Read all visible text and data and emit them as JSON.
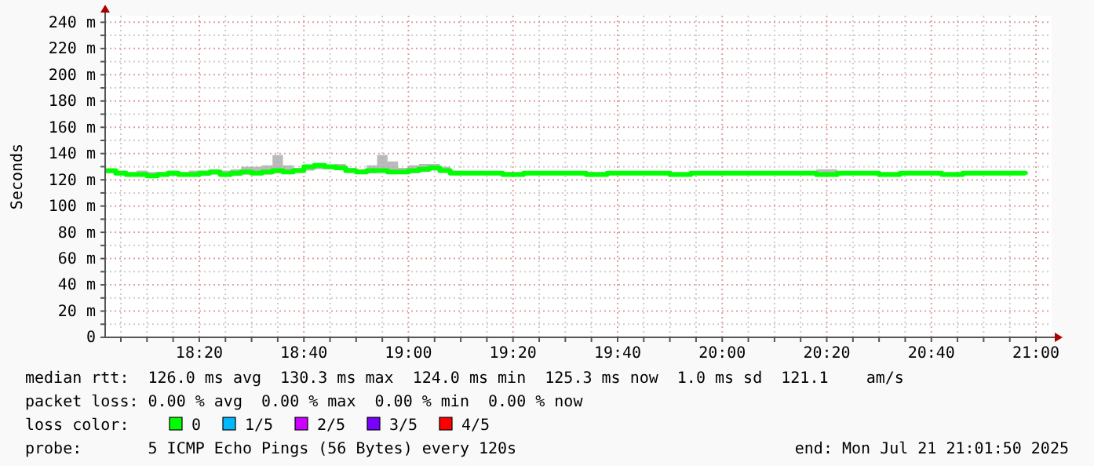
{
  "chart_data": {
    "type": "step",
    "ylabel": "Seconds",
    "legend_title": "loss color:",
    "legend": "bottom",
    "grid": true,
    "line_style": "solid",
    "xlim": [
      18.0333,
      21.05
    ],
    "ylim": [
      0,
      245
    ],
    "xticks": [
      {
        "value": 18.0833,
        "label": null
      },
      {
        "value": 18.1667,
        "label": null
      },
      {
        "value": 18.25,
        "label": null
      },
      {
        "value": 18.3333,
        "label": "18:20"
      },
      {
        "value": 18.4167,
        "label": null
      },
      {
        "value": 18.5,
        "label": null
      },
      {
        "value": 18.5833,
        "label": null
      },
      {
        "value": 18.6667,
        "label": "18:40"
      },
      {
        "value": 18.75,
        "label": null
      },
      {
        "value": 18.8333,
        "label": null
      },
      {
        "value": 18.9167,
        "label": null
      },
      {
        "value": 19,
        "label": "19:00"
      },
      {
        "value": 19.0833,
        "label": null
      },
      {
        "value": 19.1667,
        "label": null
      },
      {
        "value": 19.25,
        "label": null
      },
      {
        "value": 19.3333,
        "label": "19:20"
      },
      {
        "value": 19.4167,
        "label": null
      },
      {
        "value": 19.5,
        "label": null
      },
      {
        "value": 19.5833,
        "label": null
      },
      {
        "value": 19.6667,
        "label": "19:40"
      },
      {
        "value": 19.75,
        "label": null
      },
      {
        "value": 19.8333,
        "label": null
      },
      {
        "value": 19.9167,
        "label": null
      },
      {
        "value": 20,
        "label": "20:00"
      },
      {
        "value": 20.0833,
        "label": null
      },
      {
        "value": 20.1667,
        "label": null
      },
      {
        "value": 20.25,
        "label": null
      },
      {
        "value": 20.3333,
        "label": "20:20"
      },
      {
        "value": 20.4167,
        "label": null
      },
      {
        "value": 20.5,
        "label": null
      },
      {
        "value": 20.5833,
        "label": null
      },
      {
        "value": 20.6667,
        "label": "20:40"
      },
      {
        "value": 20.75,
        "label": null
      },
      {
        "value": 20.8333,
        "label": null
      },
      {
        "value": 20.9167,
        "label": null
      },
      {
        "value": 21,
        "label": "21:00"
      }
    ],
    "yticks": [
      {
        "value": 0,
        "label": "0"
      },
      {
        "value": 10,
        "label": null
      },
      {
        "value": 20,
        "label": "20 m"
      },
      {
        "value": 30,
        "label": null
      },
      {
        "value": 40,
        "label": "40 m"
      },
      {
        "value": 50,
        "label": null
      },
      {
        "value": 60,
        "label": "60 m"
      },
      {
        "value": 70,
        "label": null
      },
      {
        "value": 80,
        "label": "80 m"
      },
      {
        "value": 90,
        "label": null
      },
      {
        "value": 100,
        "label": "100 m"
      },
      {
        "value": 110,
        "label": null
      },
      {
        "value": 120,
        "label": "120 m"
      },
      {
        "value": 130,
        "label": null
      },
      {
        "value": 140,
        "label": "140 m"
      },
      {
        "value": 150,
        "label": null
      },
      {
        "value": 160,
        "label": "160 m"
      },
      {
        "value": 170,
        "label": null
      },
      {
        "value": 180,
        "label": "180 m"
      },
      {
        "value": 190,
        "label": null
      },
      {
        "value": 200,
        "label": "200 m"
      },
      {
        "value": 210,
        "label": null
      },
      {
        "value": 220,
        "label": "220 m"
      },
      {
        "value": 230,
        "label": null
      },
      {
        "value": 240,
        "label": "240 m"
      }
    ],
    "x": [
      18.0333,
      18.0667,
      18.1,
      18.1333,
      18.1667,
      18.2,
      18.2333,
      18.2667,
      18.3,
      18.3333,
      18.3667,
      18.4,
      18.4333,
      18.4667,
      18.5,
      18.5333,
      18.5667,
      18.6,
      18.6333,
      18.6667,
      18.7,
      18.7333,
      18.7667,
      18.8,
      18.8333,
      18.8667,
      18.9,
      18.9333,
      18.9667,
      19,
      19.0333,
      19.0667,
      19.1,
      19.1333,
      19.1667,
      19.2333,
      19.3,
      19.3667,
      19.4333,
      19.5,
      19.5667,
      19.6333,
      19.7,
      19.7667,
      19.8333,
      19.9,
      19.9667,
      20.0333,
      20.1,
      20.1667,
      20.2333,
      20.3,
      20.3667,
      20.4333,
      20.5,
      20.5667,
      20.6333,
      20.7,
      20.7667,
      20.8333,
      20.9,
      20.9667
    ],
    "series": [
      {
        "name": "0",
        "color": "#00ff00",
        "values": [
          127,
          125,
          124,
          124,
          123,
          124,
          125,
          124,
          124,
          125,
          126,
          124,
          125,
          126,
          125,
          126,
          127,
          126,
          127,
          130,
          131,
          130,
          129,
          127,
          126,
          127,
          127,
          126,
          126,
          127,
          128,
          129,
          127,
          125,
          125,
          125,
          124,
          125,
          125,
          125,
          124,
          125,
          125,
          125,
          124,
          125,
          125,
          125,
          125,
          125,
          125,
          124,
          125,
          125,
          124,
          125,
          125,
          124,
          125,
          125,
          125,
          124
        ],
        "lower": [
          125,
          124,
          123,
          123,
          122,
          123,
          123,
          123,
          123,
          123,
          124,
          123,
          123,
          124,
          124,
          124,
          125,
          125,
          126,
          127,
          128,
          128,
          128,
          126,
          125,
          125,
          126,
          125,
          125,
          125,
          126,
          127,
          126,
          125,
          124,
          124,
          123,
          124,
          124,
          124,
          123,
          124,
          124,
          124,
          123,
          124,
          124,
          124,
          124,
          124,
          124,
          123,
          124,
          124,
          123,
          124,
          124,
          123,
          124,
          124,
          124,
          123
        ],
        "upper": [
          128,
          127,
          126,
          127,
          126,
          126,
          127,
          126,
          127,
          127,
          128,
          127,
          128,
          130,
          130,
          131,
          139,
          131,
          129,
          131,
          131,
          131,
          132,
          129,
          128,
          131,
          139,
          134,
          129,
          131,
          132,
          132,
          130,
          127,
          126,
          126,
          126,
          126,
          126,
          126,
          126,
          126,
          126,
          126,
          126,
          126,
          126,
          126,
          126,
          126,
          126,
          128,
          126,
          126,
          126,
          126,
          126,
          126,
          126,
          126,
          126,
          128
        ]
      },
      {
        "name": "1/5",
        "color": "#00b8ff",
        "values": [
          null,
          null,
          null,
          null,
          null,
          null,
          null,
          null,
          null,
          null,
          null,
          null,
          null,
          null,
          null,
          null,
          null,
          null,
          null,
          null,
          null,
          null,
          null,
          null,
          null,
          null,
          null,
          null,
          null,
          null,
          null,
          null,
          null,
          null,
          null,
          null,
          null,
          null,
          null,
          null,
          null,
          null,
          null,
          null,
          null,
          null,
          null,
          null,
          null,
          null,
          null,
          null,
          null,
          null,
          null,
          null,
          null,
          null,
          null,
          null,
          null,
          null
        ]
      },
      {
        "name": "2/5",
        "color": "#cc00ff",
        "values": [
          null,
          null,
          null,
          null,
          null,
          null,
          null,
          null,
          null,
          null,
          null,
          null,
          null,
          null,
          null,
          null,
          null,
          null,
          null,
          null,
          null,
          null,
          null,
          null,
          null,
          null,
          null,
          null,
          null,
          null,
          null,
          null,
          null,
          null,
          null,
          null,
          null,
          null,
          null,
          null,
          null,
          null,
          null,
          null,
          null,
          null,
          null,
          null,
          null,
          null,
          null,
          null,
          null,
          null,
          null,
          null,
          null,
          null,
          null,
          null,
          null,
          null
        ]
      },
      {
        "name": "3/5",
        "color": "#7700ff",
        "values": [
          null,
          null,
          null,
          null,
          null,
          null,
          null,
          null,
          null,
          null,
          null,
          null,
          null,
          null,
          null,
          null,
          null,
          null,
          null,
          null,
          null,
          null,
          null,
          null,
          null,
          null,
          null,
          null,
          null,
          null,
          null,
          null,
          null,
          null,
          null,
          null,
          null,
          null,
          null,
          null,
          null,
          null,
          null,
          null,
          null,
          null,
          null,
          null,
          null,
          null,
          null,
          null,
          null,
          null,
          null,
          null,
          null,
          null,
          null,
          null,
          null,
          null
        ]
      },
      {
        "name": "4/5",
        "color": "#ff0000",
        "values": [
          null,
          null,
          null,
          null,
          null,
          null,
          null,
          null,
          null,
          null,
          null,
          null,
          null,
          null,
          null,
          null,
          null,
          null,
          null,
          null,
          null,
          null,
          null,
          null,
          null,
          null,
          null,
          null,
          null,
          null,
          null,
          null,
          null,
          null,
          null,
          null,
          null,
          null,
          null,
          null,
          null,
          null,
          null,
          null,
          null,
          null,
          null,
          null,
          null,
          null,
          null,
          null,
          null,
          null,
          null,
          null,
          null,
          null,
          null,
          null,
          null,
          null
        ]
      }
    ],
    "annotations": [
      "median rtt:  126.0 ms avg  130.3 ms max  124.0 ms min  125.3 ms now  1.0 ms sd  121.1    am/s",
      "packet loss: 0.00 % avg  0.00 % max  0.00 % min  0.00 % now",
      "probe:       5 ICMP Echo Pings (56 Bytes) every 120s",
      "end: Mon Jul 21 21:01:50 2025"
    ]
  }
}
